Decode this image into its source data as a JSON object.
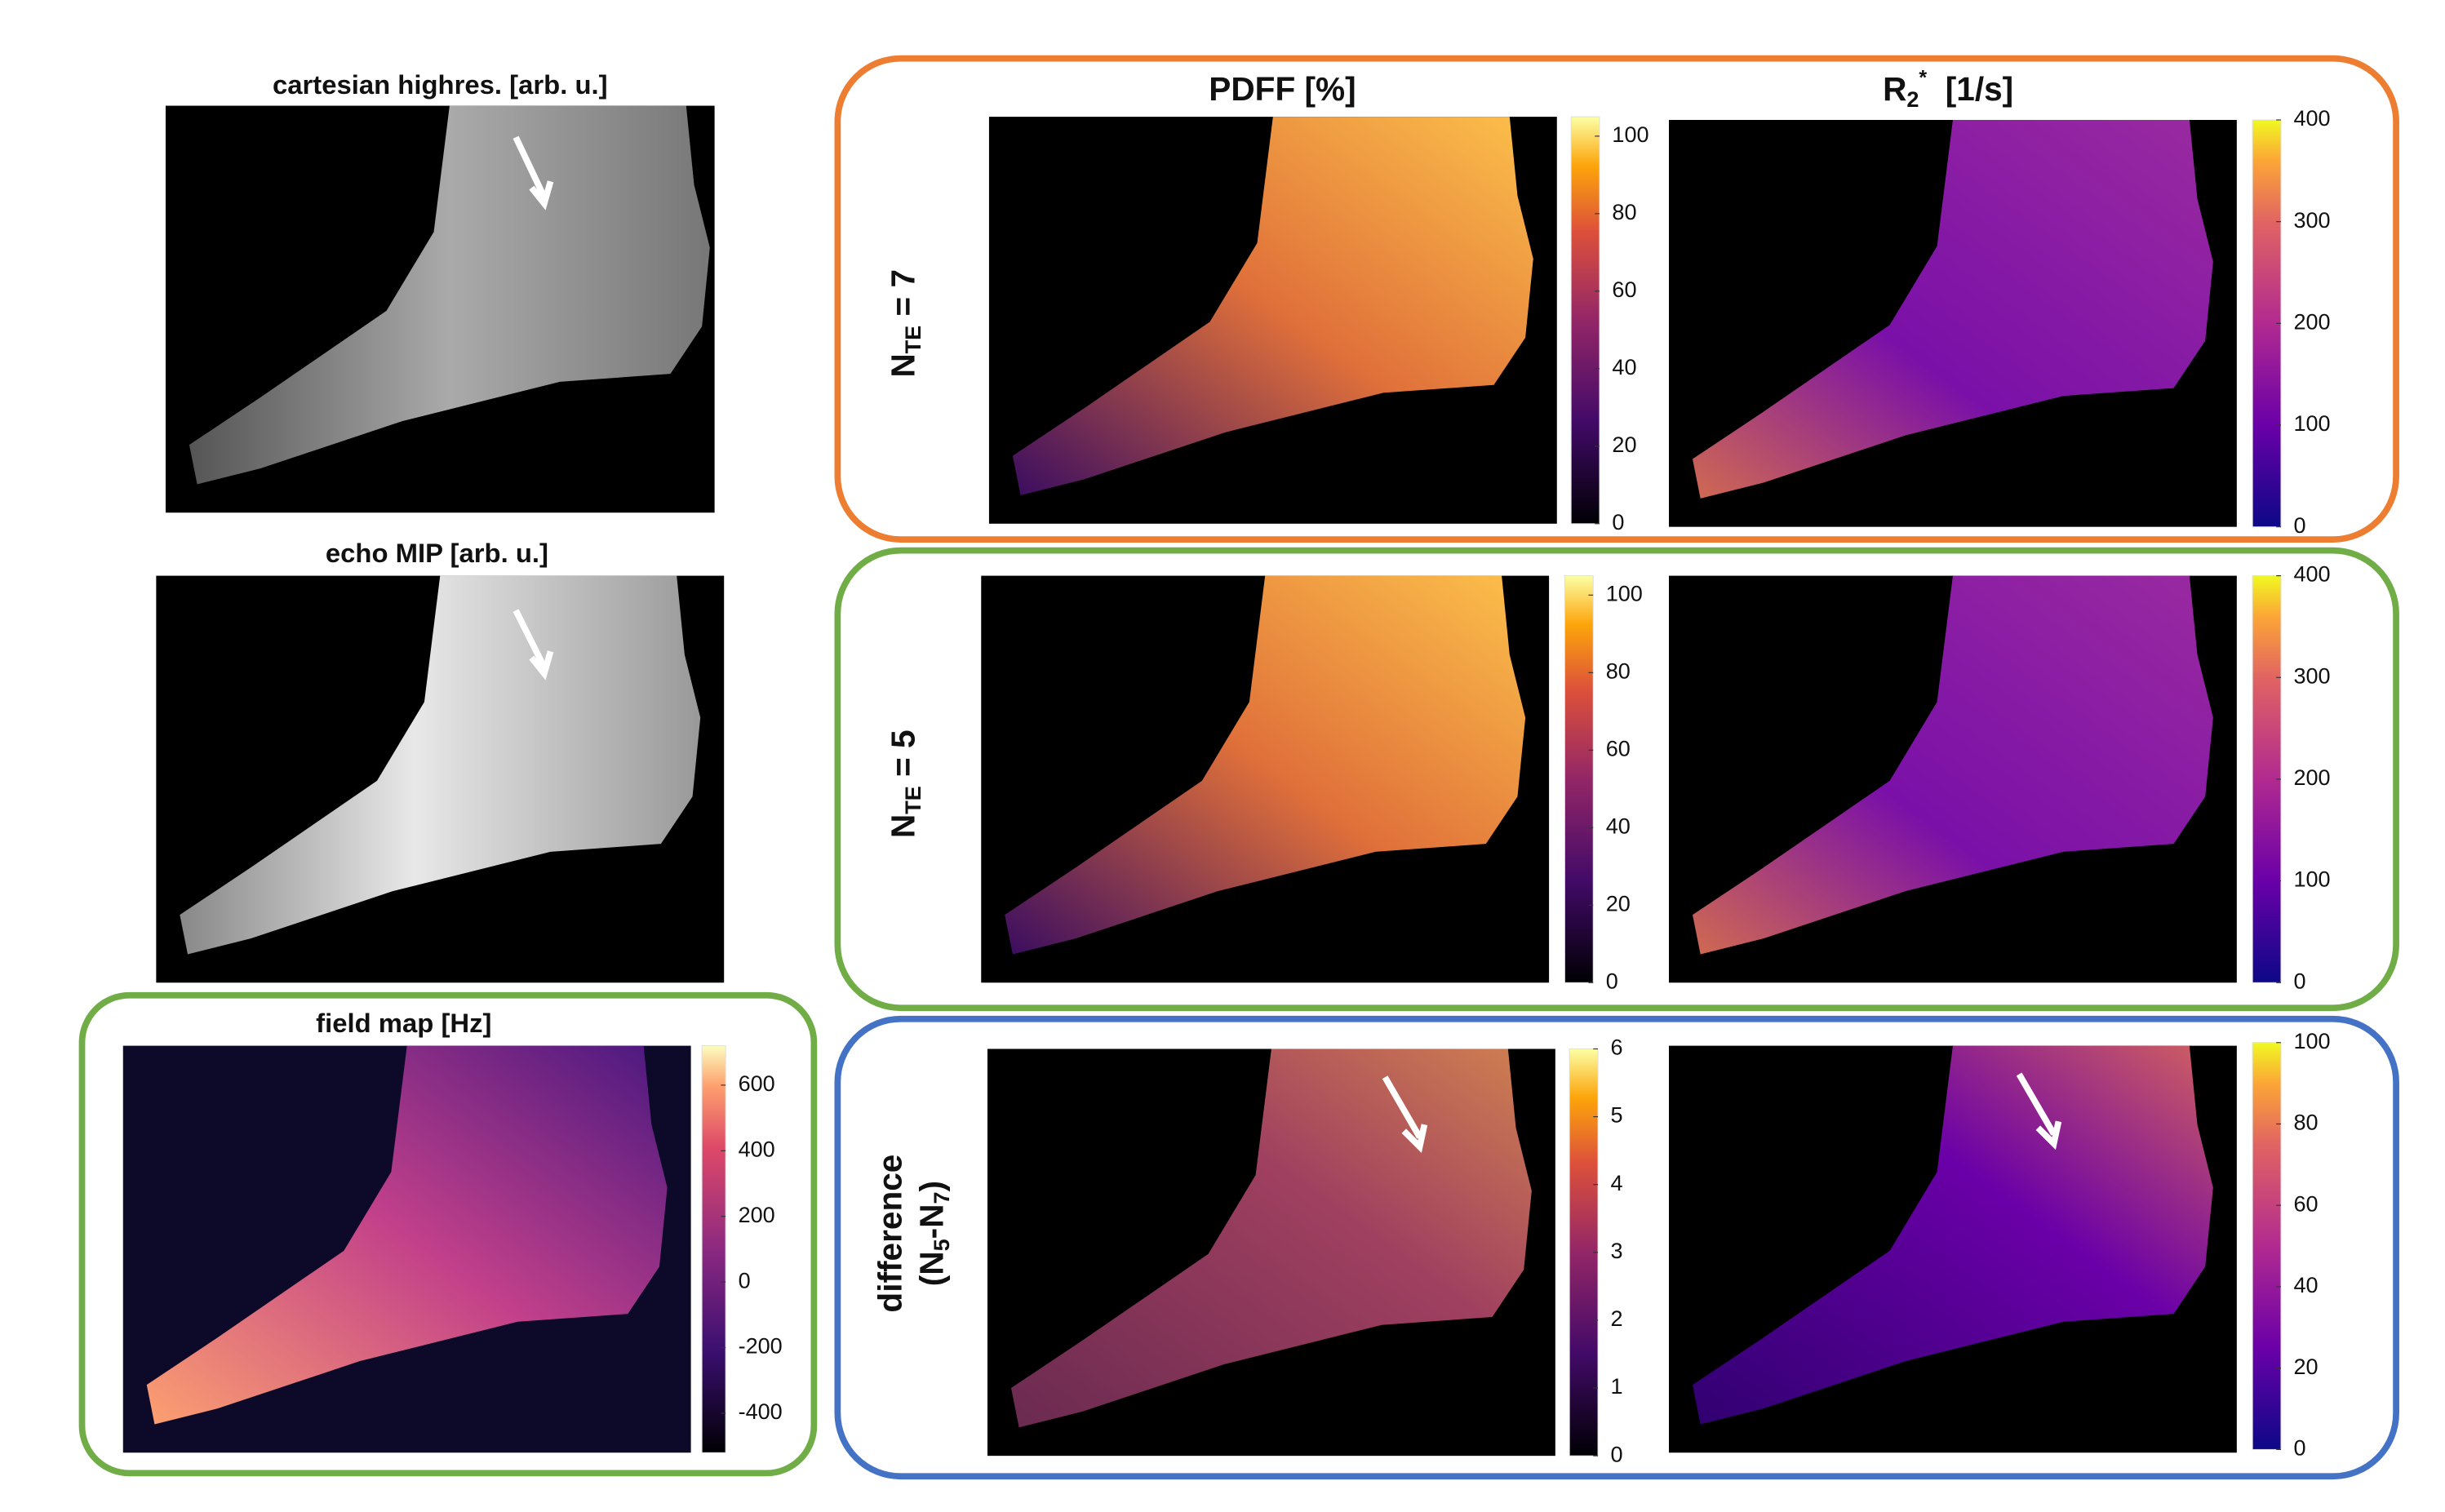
{
  "panels": [
    {
      "title": "cartesian highres. [arb. u.]"
    },
    {
      "title": "echo MIP [arb. u.]"
    },
    {
      "title": "field map [Hz]",
      "colormap": "magma",
      "colorbar": {
        "lim": [
          -520,
          720
        ],
        "ticks": [
          -400,
          -200,
          0,
          200,
          400,
          600
        ]
      }
    }
  ],
  "columns": [
    {
      "title": [
        "PDFF [%]"
      ]
    },
    {
      "title": [
        "R",
        "2",
        "*",
        "  [1/s]"
      ]
    }
  ],
  "rows": [
    {
      "label": [
        "N",
        "TE",
        " = 7"
      ],
      "colorbars": [
        {
          "colormap": "inferno",
          "lim": [
            0,
            105
          ],
          "ticks": [
            0,
            20,
            40,
            60,
            80,
            100
          ]
        },
        {
          "colormap": "plasma",
          "lim": [
            0,
            400
          ],
          "ticks": [
            0,
            100,
            200,
            300,
            400
          ]
        }
      ]
    },
    {
      "label": [
        "N",
        "TE",
        " = 5"
      ],
      "colorbars": [
        {
          "colormap": "inferno",
          "lim": [
            0,
            105
          ],
          "ticks": [
            0,
            20,
            40,
            60,
            80,
            100
          ]
        },
        {
          "colormap": "plasma",
          "lim": [
            0,
            400
          ],
          "ticks": [
            0,
            100,
            200,
            300,
            400
          ]
        }
      ]
    },
    {
      "label": [
        "difference",
        "(N",
        "5",
        "-N",
        "7",
        ")"
      ],
      "colorbars": [
        {
          "colormap": "inferno",
          "lim": [
            0,
            6
          ],
          "ticks": [
            0,
            1,
            2,
            3,
            4,
            5,
            6
          ]
        },
        {
          "colormap": "plasma",
          "lim": [
            0,
            100
          ],
          "ticks": [
            0,
            20,
            40,
            60,
            80,
            100
          ]
        }
      ]
    }
  ]
}
